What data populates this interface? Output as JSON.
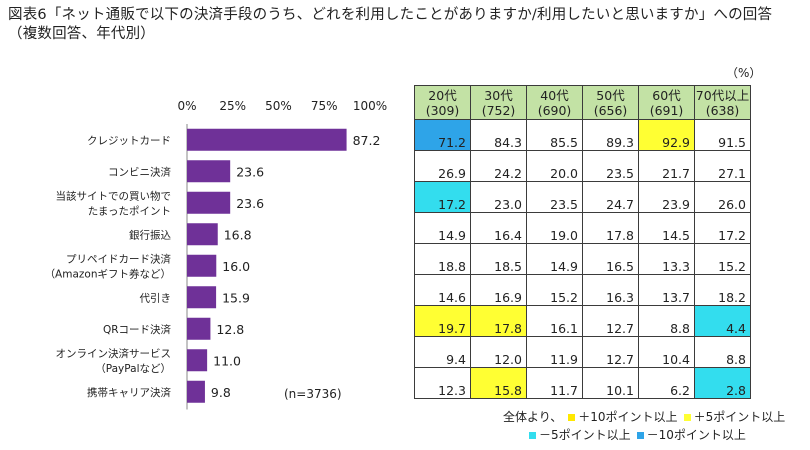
{
  "title": "図表6「ネット通販で以下の決済手段のうち、どれを利用したことがありますか/利用したいと思いますか」への回答 （複数回答、年代別）",
  "unit": "（%）",
  "colors": {
    "bar": "#6f3198",
    "header_bg": "#c3e2a5",
    "plus10": "#ffe800",
    "plus5": "#ffff33",
    "minus5": "#33ddee",
    "minus10": "#2ea4e8"
  },
  "chart_data": [
    {
      "type": "bar",
      "orientation": "horizontal",
      "categories": [
        "クレジットカード",
        "コンビニ決済",
        "当該サイトでの買い物でたまったポイント",
        "銀行振込",
        "プリペイドカード決済（Amazonギフト券など）",
        "代引き",
        "QRコード決済",
        "オンライン決済サービス（PayPalなど）",
        "携帯キャリア決済"
      ],
      "category_lines": [
        [
          "クレジットカード"
        ],
        [
          "コンビニ決済"
        ],
        [
          "当該サイトでの買い物で",
          "たまったポイント"
        ],
        [
          "銀行振込"
        ],
        [
          "プリペイドカード決済",
          "（Amazonギフト券など）"
        ],
        [
          "代引き"
        ],
        [
          "QRコード決済"
        ],
        [
          "オンライン決済サービス",
          "（PayPalなど）"
        ],
        [
          "携帯キャリア決済"
        ]
      ],
      "values": [
        87.2,
        23.6,
        23.6,
        16.8,
        16.0,
        15.9,
        12.8,
        11.0,
        9.8
      ],
      "value_labels": [
        "87.2",
        "23.6",
        "23.6",
        "16.8",
        "16.0",
        "15.9",
        "12.8",
        "11.0",
        "9.8"
      ],
      "xlim": [
        0,
        100
      ],
      "ticks": [
        0,
        25,
        50,
        75,
        100
      ],
      "tick_labels": [
        "0%",
        "25%",
        "50%",
        "75%",
        "100%"
      ],
      "note": "(n=3736)"
    },
    {
      "type": "table",
      "columns": [
        {
          "age": "20代",
          "n": "(309)"
        },
        {
          "age": "30代",
          "n": "(752)"
        },
        {
          "age": "40代",
          "n": "(690)"
        },
        {
          "age": "50代",
          "n": "(656)"
        },
        {
          "age": "60代",
          "n": "(691)"
        },
        {
          "age": "70代以上",
          "n": "(638)"
        }
      ],
      "rows": [
        [
          {
            "v": "71.2",
            "h": "minus10"
          },
          {
            "v": "84.3"
          },
          {
            "v": "85.5"
          },
          {
            "v": "89.3"
          },
          {
            "v": "92.9",
            "h": "plus5"
          },
          {
            "v": "91.5"
          }
        ],
        [
          {
            "v": "26.9"
          },
          {
            "v": "24.2"
          },
          {
            "v": "20.0"
          },
          {
            "v": "23.5"
          },
          {
            "v": "21.7"
          },
          {
            "v": "27.1"
          }
        ],
        [
          {
            "v": "17.2",
            "h": "minus5"
          },
          {
            "v": "23.0"
          },
          {
            "v": "23.5"
          },
          {
            "v": "24.7"
          },
          {
            "v": "23.9"
          },
          {
            "v": "26.0"
          }
        ],
        [
          {
            "v": "14.9"
          },
          {
            "v": "16.4"
          },
          {
            "v": "19.0"
          },
          {
            "v": "17.8"
          },
          {
            "v": "14.5"
          },
          {
            "v": "17.2"
          }
        ],
        [
          {
            "v": "18.8"
          },
          {
            "v": "18.5"
          },
          {
            "v": "14.9"
          },
          {
            "v": "16.5"
          },
          {
            "v": "13.3"
          },
          {
            "v": "15.2"
          }
        ],
        [
          {
            "v": "14.6"
          },
          {
            "v": "16.9"
          },
          {
            "v": "15.2"
          },
          {
            "v": "16.3"
          },
          {
            "v": "13.7"
          },
          {
            "v": "18.2"
          }
        ],
        [
          {
            "v": "19.7",
            "h": "plus5"
          },
          {
            "v": "17.8",
            "h": "plus5"
          },
          {
            "v": "16.1"
          },
          {
            "v": "12.7"
          },
          {
            "v": "8.8"
          },
          {
            "v": "4.4",
            "h": "minus5"
          }
        ],
        [
          {
            "v": "9.4"
          },
          {
            "v": "12.0"
          },
          {
            "v": "11.9"
          },
          {
            "v": "12.7"
          },
          {
            "v": "10.4"
          },
          {
            "v": "8.8"
          }
        ],
        [
          {
            "v": "12.3"
          },
          {
            "v": "15.8",
            "h": "plus5"
          },
          {
            "v": "11.7"
          },
          {
            "v": "10.1"
          },
          {
            "v": "6.2"
          },
          {
            "v": "2.8",
            "h": "minus5"
          }
        ]
      ]
    }
  ],
  "legend": {
    "prefix": "全体より、",
    "items": [
      {
        "key": "plus10",
        "label": "＋10ポイント以上"
      },
      {
        "key": "plus5",
        "label": "＋5ポイント以上"
      },
      {
        "key": "minus5",
        "label": "－5ポイント以上"
      },
      {
        "key": "minus10",
        "label": "－10ポイント以上"
      }
    ]
  }
}
